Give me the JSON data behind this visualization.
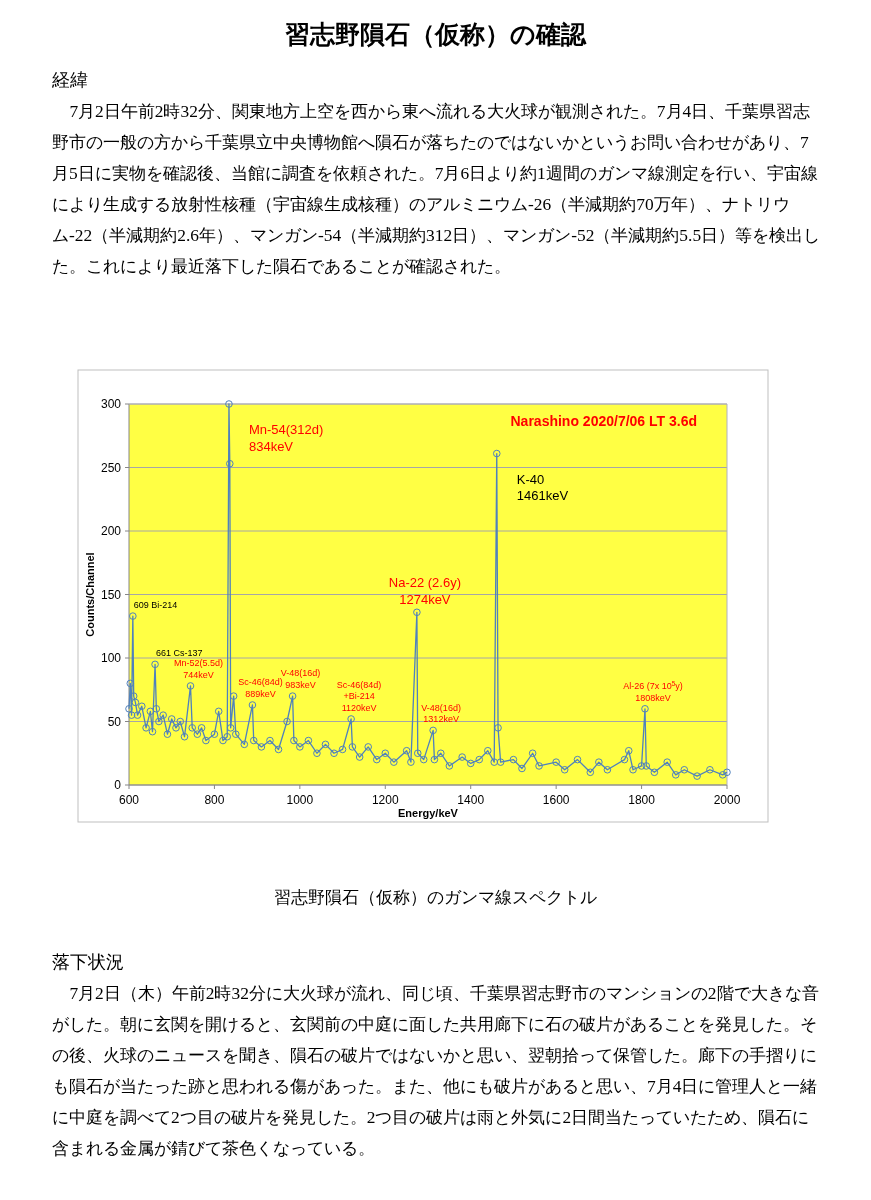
{
  "chart_data": {
    "type": "line",
    "title": "習志野隕石（仮称）の確認",
    "subtitle": "Narashino 2020/7/06 LT 3.6d",
    "xlabel": "Energy/keV",
    "ylabel": "Counts/Channel",
    "x": [
      600,
      603,
      606,
      609,
      611,
      615,
      620,
      630,
      640,
      650,
      655,
      661,
      664,
      670,
      680,
      690,
      700,
      710,
      720,
      730,
      744,
      748,
      760,
      770,
      780,
      800,
      810,
      820,
      830,
      834,
      836,
      838,
      845,
      850,
      870,
      889,
      892,
      910,
      930,
      950,
      970,
      983,
      986,
      1000,
      1020,
      1040,
      1060,
      1080,
      1100,
      1120,
      1123,
      1140,
      1160,
      1180,
      1200,
      1220,
      1250,
      1260,
      1274,
      1276,
      1290,
      1312,
      1315,
      1330,
      1350,
      1380,
      1400,
      1420,
      1440,
      1455,
      1461,
      1464,
      1470,
      1500,
      1520,
      1545,
      1560,
      1600,
      1620,
      1650,
      1680,
      1700,
      1720,
      1760,
      1770,
      1780,
      1800,
      1808,
      1811,
      1830,
      1860,
      1880,
      1900,
      1930,
      1960,
      1990,
      2000
    ],
    "series": [
      {
        "color": "#4f81bd",
        "values": [
          60,
          80,
          55,
          133,
          70,
          65,
          55,
          62,
          45,
          58,
          42,
          95,
          60,
          50,
          55,
          40,
          52,
          45,
          50,
          38,
          78,
          45,
          40,
          45,
          35,
          40,
          58,
          35,
          38,
          300,
          253,
          45,
          70,
          40,
          32,
          63,
          35,
          30,
          35,
          28,
          50,
          70,
          35,
          30,
          35,
          25,
          32,
          25,
          28,
          52,
          30,
          22,
          30,
          20,
          25,
          18,
          27,
          18,
          136,
          25,
          20,
          43,
          20,
          25,
          15,
          22,
          17,
          20,
          27,
          18,
          261,
          45,
          18,
          20,
          13,
          25,
          15,
          18,
          12,
          20,
          10,
          18,
          12,
          20,
          27,
          12,
          15,
          60,
          15,
          10,
          18,
          8,
          12,
          7,
          12,
          8,
          10
        ]
      }
    ],
    "xlim": [
      600,
      2000
    ],
    "xticks": [
      600,
      800,
      1000,
      1200,
      1400,
      1600,
      1800,
      2000
    ],
    "ylim": [
      0,
      300
    ],
    "yticks": [
      0,
      50,
      100,
      150,
      200,
      250,
      300
    ],
    "grid": "y",
    "marker": "circle",
    "annotations": [
      "経緯",
      "7月2日午前2時32分、関東地方上空を西から東へ流れる大火球が観測された。7月4日、千葉県習志野市の一般の方から千葉県立中央博物館へ隕石が落ちたのではないかというお問い合わせがあり、7月5日に実物を確認後、当館に調査を依頼された。7月6日より約1週間のガンマ線測定を行い、宇宙線により生成する放射性核種（宇宙線生成核種）のアルミニウム-26（半減期約70万年）、ナトリウム-22（半減期約2.6年）、マンガン-54（半減期約312日）、マンガン-52（半減期約5.5日）等を検出した。これにより最近落下した隕石であることが確認された。",
      "習志野隕石（仮称）のガンマ線スペクトル",
      "落下状況",
      "7月2日（木）午前2時32分に大火球が流れ、同じ頃、千葉県習志野市のマンションの2階で大きな音がした。朝に玄関を開けると、玄関前の中庭に面した共用廊下に石の破片があることを発見した。その後、火球のニュースを聞き、隕石の破片ではないかと思い、翌朝拾って保管した。廊下の手摺りにも隕石が当たった跡と思われる傷があった。また、他にも破片があると思い、7月4日に管理人と一緒に中庭を調べて2つ目の破片を発見した。2つ目の破片は雨と外気に2日間当たっていたため、隕石に含まれる金属が錆びて茶色くなっている。",
      {
        "text": "609 Bi-214",
        "x": 609,
        "y": 133
      },
      {
        "text": "661 Cs-137",
        "x": 661,
        "y": 95
      },
      {
        "text": "Mn-52(5.5d)\n744keV",
        "x": 744,
        "y": 78
      },
      {
        "text": "Mn-54(312d)\n834keV",
        "x": 834,
        "y": 300
      },
      {
        "text": "Sc-46(84d)\n889keV",
        "x": 889,
        "y": 63
      },
      {
        "text": "V-48(16d)\n983keV",
        "x": 983,
        "y": 70
      },
      {
        "text": "Sc-46(84d)\n+Bi-214\n1120keV",
        "x": 1120,
        "y": 52
      },
      {
        "text": "Na-22 (2.6y)\n1274keV",
        "x": 1274,
        "y": 136
      },
      {
        "text": "V-48(16d)\n1312keV",
        "x": 1312,
        "y": 43
      },
      {
        "text": "K-40\n1461keV",
        "x": 1461,
        "y": 261
      },
      {
        "text": "Al-26 (7x 10$^{5}$y)\n1808keV",
        "x": 1808,
        "y": 60
      }
    ]
  }
}
